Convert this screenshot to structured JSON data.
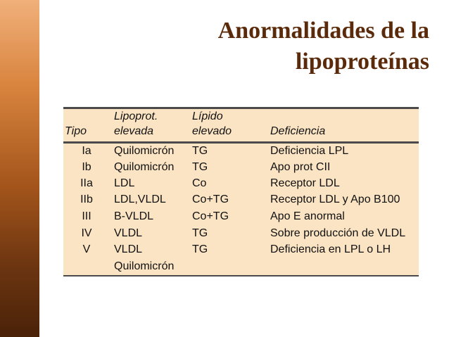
{
  "title": {
    "line1": "Anormalidades de la",
    "line2": "lipoproteínas"
  },
  "table": {
    "headers": {
      "tipo": "Tipo",
      "lipoprot_line1": "Lipoprot.",
      "lipoprot_line2": "elevada",
      "lipido_line1": "Lípido",
      "lipido_line2": "elevado",
      "deficiencia": "Deficiencia"
    },
    "rows": [
      {
        "tipo": "Ia",
        "lipoprot": "Quilomicrón",
        "lipido": "TG",
        "deficiencia": "Deficiencia LPL"
      },
      {
        "tipo": "Ib",
        "lipoprot": "Quilomicrón",
        "lipido": "TG",
        "deficiencia": "Apo prot CII"
      },
      {
        "tipo": "IIa",
        "lipoprot": "LDL",
        "lipido": "Co",
        "deficiencia": "Receptor LDL"
      },
      {
        "tipo": "IIb",
        "lipoprot": "LDL,VLDL",
        "lipido": "Co+TG",
        "deficiencia": "Receptor LDL y Apo B100"
      },
      {
        "tipo": "III",
        "lipoprot": "B-VLDL",
        "lipido": "Co+TG",
        "deficiencia": "Apo E anormal"
      },
      {
        "tipo": "IV",
        "lipoprot": "VLDL",
        "lipido": "TG",
        "deficiencia": "Sobre producción de VLDL"
      },
      {
        "tipo": "V",
        "lipoprot": "VLDL",
        "lipido": "TG",
        "deficiencia": "Deficiencia en LPL o LH"
      }
    ],
    "continuation": "Quilomicrón"
  }
}
